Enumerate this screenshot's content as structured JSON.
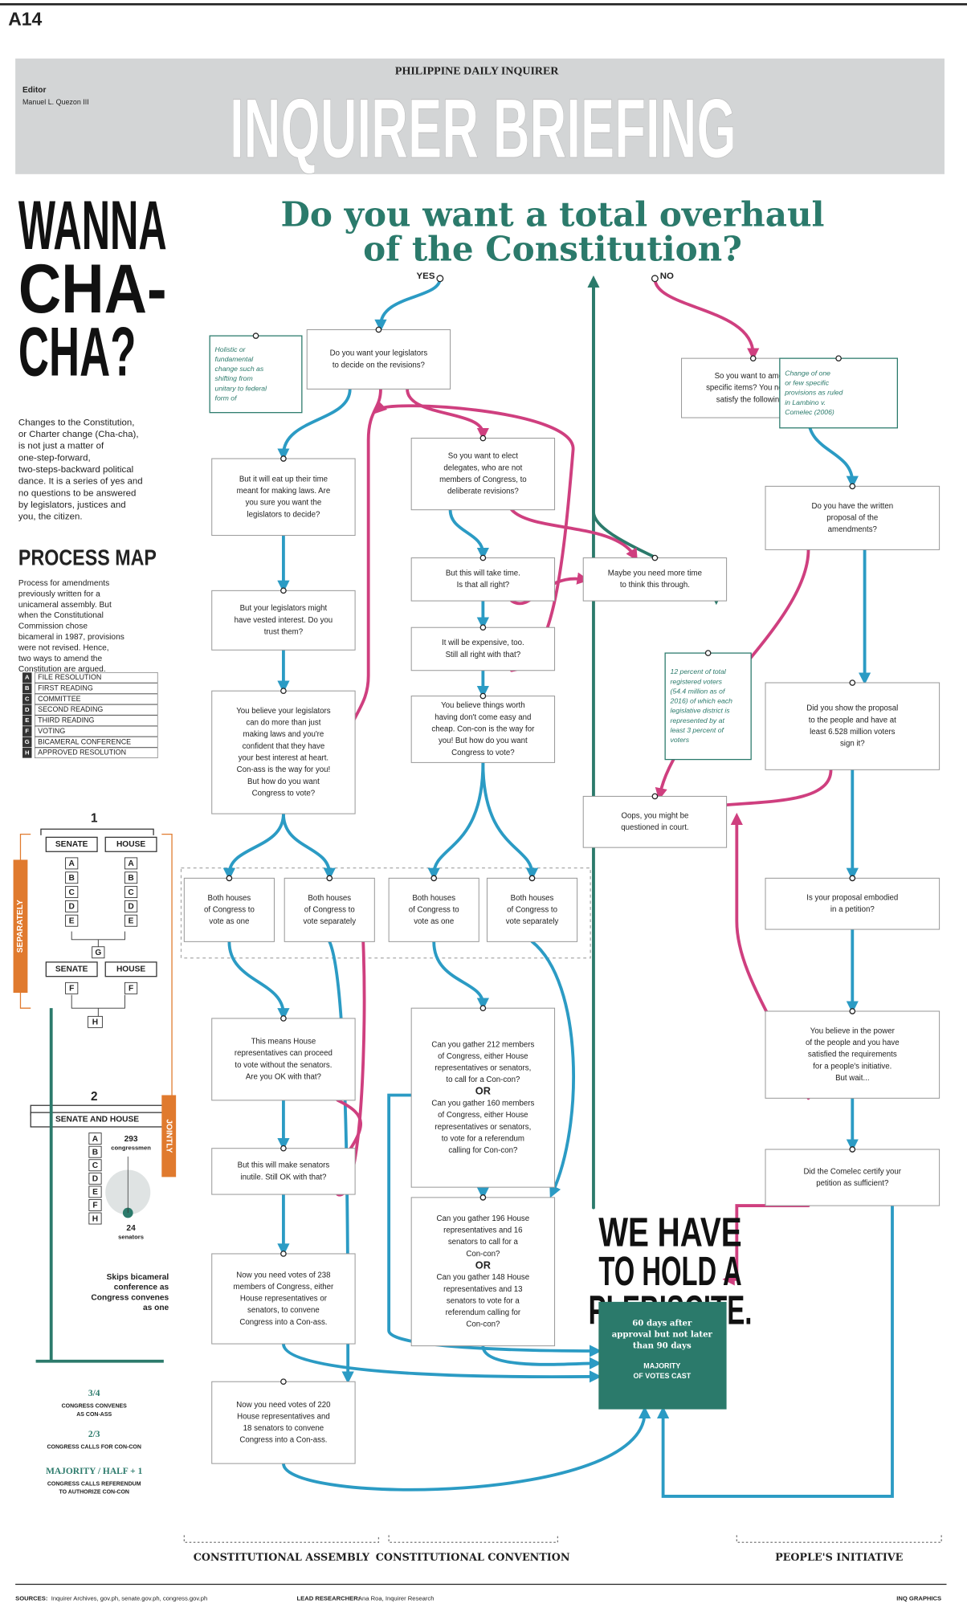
{
  "page": {
    "page_number": "A14",
    "publication": "PHILIPPINE DAILY INQUIRER",
    "section": "INQUIRER BRIEFING",
    "editor_label": "Editor",
    "editor_name": "Manuel L. Quezon III"
  },
  "sidebar": {
    "headline": [
      "WANNA",
      "CHA-",
      "CHA?"
    ],
    "intro": [
      "Changes to the Constitution,",
      "or Charter change (Cha-cha),",
      "is not just a matter of",
      "one-step-forward,",
      "two-steps-backward political",
      "dance. It is a series of yes and",
      "no questions to be answered",
      "by legislators, justices and",
      "you, the citizen."
    ],
    "process_title": "PROCESS MAP",
    "process_text": [
      "Process for amendments",
      "previously written for a",
      "unicameral assembly. But",
      "when the Constitutional",
      "Commission chose",
      "bicameral in 1987, provisions",
      "were not revised. Hence,",
      "two ways to amend the",
      "Constitution are argued."
    ],
    "legend": [
      {
        "letter": "A",
        "label": "FILE RESOLUTION"
      },
      {
        "letter": "B",
        "label": "FIRST READING"
      },
      {
        "letter": "C",
        "label": "COMMITTEE"
      },
      {
        "letter": "D",
        "label": "SECOND READING"
      },
      {
        "letter": "E",
        "label": "THIRD READING"
      },
      {
        "letter": "F",
        "label": "VOTING"
      },
      {
        "letter": "G",
        "label": "BICAMERAL CONFERENCE"
      },
      {
        "letter": "H",
        "label": "APPROVED RESOLUTION"
      }
    ],
    "map": {
      "stage1": "1",
      "chamber_a": "SENATE",
      "chamber_b": "HOUSE",
      "steps": [
        "A",
        "B",
        "C",
        "D",
        "E"
      ],
      "bicam": "G",
      "vote": "F",
      "approved": "H",
      "mode1": "SEPARATELY",
      "stage2": "2",
      "joint": "SENATE AND HOUSE",
      "steps2": [
        "A",
        "B",
        "C",
        "D",
        "E",
        "F",
        "H"
      ],
      "congressmen": [
        "293",
        "congressmen"
      ],
      "senators": [
        "24",
        "senators"
      ],
      "note": [
        "Skips bicameral",
        "conference as",
        "Congress convenes",
        "as one"
      ],
      "mode2": "JOINTLY"
    },
    "thresholds": [
      {
        "value": "3/4",
        "lines": [
          "CONGRESS CONVENES",
          "AS CON-ASS"
        ]
      },
      {
        "value": "2/3",
        "lines": [
          "CONGRESS CALLS FOR CON-CON"
        ]
      },
      {
        "value": "MAJORITY / HALF + 1",
        "lines": [
          "CONGRESS CALLS REFERENDUM",
          "TO AUTHORIZE CON-CON"
        ]
      }
    ]
  },
  "flowchart": {
    "title": [
      "Do you want a total overhaul",
      "of the Constitution?"
    ],
    "yes": "YES",
    "no": "NO",
    "nodes": [
      {
        "lines": [
          "Holistic or",
          "fundamental",
          "change such as",
          "shifting from",
          "unitary to federal",
          "form of"
        ]
      },
      {
        "lines": [
          "Do you want your legislators",
          "to decide on the revisions?"
        ]
      },
      {
        "lines": [
          "But it will eat up their time",
          "meant for making laws. Are",
          "you sure you want the",
          "legislators to decide?"
        ]
      },
      {
        "lines": [
          "But your legislators might",
          "have vested interest. Do you",
          "trust them?"
        ]
      },
      {
        "lines": [
          "You believe your legislators",
          "can do more than just",
          "making laws and you're",
          "confident that they have",
          "your best interest at heart.",
          "Con-ass is the way for you!",
          "But how do you want",
          "Congress to vote?"
        ]
      },
      {
        "lines": [
          "So you want to elect",
          "delegates, who are not",
          "members of Congress, to",
          "deliberate revisions?"
        ]
      },
      {
        "lines": [
          "But this will take time.",
          "Is that all right?"
        ]
      },
      {
        "lines": [
          "It will be expensive, too.",
          "Still all right with that?"
        ]
      },
      {
        "lines": [
          "You believe things worth",
          "having don't come easy and",
          "cheap. Con-con is the way for",
          "you! But how do you want",
          "Congress to vote?"
        ]
      },
      {
        "lines": [
          "Maybe you need more time",
          "to think this through."
        ]
      },
      {
        "lines": [
          "Oops, you might be",
          "questioned in court."
        ]
      },
      {
        "lines": [
          "So you want to amend",
          "specific items? You need to",
          "satisfy the following..."
        ]
      },
      {
        "lines": [
          "Change of one",
          "or few specific",
          "provisions as ruled",
          "in Lambino v.",
          "Comelec (2006)"
        ]
      },
      {
        "lines": [
          "Do you have the written",
          "proposal of the",
          "amendments?"
        ]
      },
      {
        "lines": [
          "12 percent of total",
          "registered voters",
          "(54.4 million as of",
          "2016) of which each",
          "legislative district is",
          "represented by at",
          "least 3 percent of",
          "voters"
        ]
      },
      {
        "lines": [
          "Did you show the proposal",
          "to the people and have at",
          "least 6.528 million voters",
          "sign it?"
        ]
      },
      {
        "lines": [
          "Is your proposal embodied",
          "in a petition?"
        ]
      },
      {
        "lines": [
          "You believe in the power",
          "of the people and you have",
          "satisfied the requirements",
          "for a people's initiative.",
          "But wait..."
        ]
      },
      {
        "lines": [
          "Did the Comelec certify your",
          "petition as sufficient?"
        ]
      },
      {
        "lines": [
          "Both houses",
          "of Congress to",
          "vote as one"
        ]
      },
      {
        "lines": [
          "Both houses",
          "of Congress to",
          "vote separately"
        ]
      },
      {
        "lines": [
          "Both houses",
          "of Congress to",
          "vote as one"
        ]
      },
      {
        "lines": [
          "Both houses",
          "of Congress to",
          "vote separately"
        ]
      },
      {
        "lines": [
          "This means House",
          "representatives can proceed",
          "to vote without the senators.",
          "Are you OK with that?"
        ]
      },
      {
        "lines": [
          "But this will make senators",
          "inutile. Still OK with that?"
        ]
      },
      {
        "lines": [
          "Now you need votes of 238",
          "members of Congress, either",
          "House representatives or",
          "senators, to convene",
          "Congress into a Con-ass."
        ]
      },
      {
        "lines": [
          "Now you need votes of 220",
          "House representatives and",
          "18 senators to convene",
          "Congress into a Con-ass."
        ]
      },
      {
        "lines": [
          "Can you gather 212 members",
          "of Congress, either House",
          "representatives or senators,",
          "to call for a Con-con?",
          "OR",
          "Can you gather 160 members",
          "of Congress, either House",
          "representatives or senators,",
          "to vote for a referendum",
          "calling for Con-con?"
        ]
      },
      {
        "lines": [
          "Can you gather 196 House",
          "representatives and 16",
          "senators to call for a",
          "Con-con?",
          "OR",
          "Can you gather 148 House",
          "representatives and 13",
          "senators to vote for a",
          "referendum calling for",
          "Con-con?"
        ]
      }
    ],
    "plebiscite": {
      "headline": [
        "WE HAVE",
        "TO HOLD A",
        "PLEBISCITE."
      ],
      "details": [
        "60 days after",
        "approval but not later",
        "than 90 days"
      ],
      "majority": [
        "MAJORITY",
        "OF VOTES CAST"
      ]
    },
    "paths": [
      "CONSTITUTIONAL ASSEMBLY",
      "CONSTITUTIONAL CONVENTION",
      "PEOPLE'S INITIATIVE"
    ]
  },
  "footer": {
    "sources_label": "SOURCES:",
    "sources": "Inquirer Archives, gov.ph, senate.gov.ph, congress.gov.ph",
    "researcher_label": "LEAD RESEARCHER:",
    "researcher": "Ana Roa, Inquirer Research",
    "credit": "INQ GRAPHICS"
  }
}
